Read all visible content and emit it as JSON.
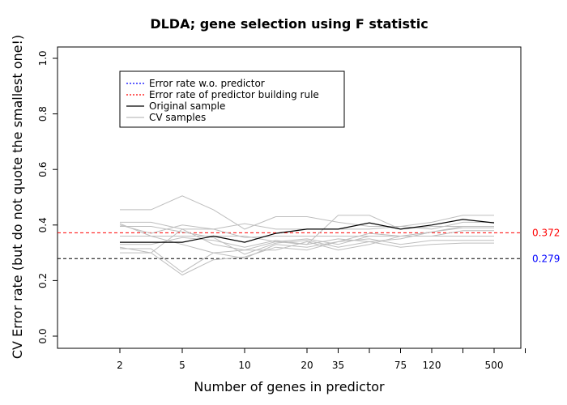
{
  "chart_data": {
    "type": "line",
    "title": "DLDA; gene selection using F statistic",
    "xlabel": "Number of genes in predictor",
    "ylabel": "CV Error rate (but do not quote the smallest one!)",
    "x_ticks": [
      "2",
      "5",
      "10",
      "20",
      "35",
      "75",
      "120",
      "500"
    ],
    "y_ticks": [
      "0.0",
      "0.2",
      "0.4",
      "0.6",
      "0.8",
      "1.0"
    ],
    "ylim": [
      0,
      1
    ],
    "n_points": 13,
    "labeled_tick_index": [
      0,
      2,
      4,
      6,
      7,
      9,
      10,
      12
    ],
    "minor_tick_index": [
      8,
      11,
      13
    ],
    "grid": false,
    "legend": {
      "placement": "top-left",
      "entries": [
        {
          "label": "Error rate w.o. predictor",
          "color": "#0000ff",
          "style": "dotted"
        },
        {
          "label": "Error rate of predictor building rule",
          "color": "#ff0000",
          "style": "dotted"
        },
        {
          "label": "Original sample",
          "color": "#000000",
          "style": "solid"
        },
        {
          "label": "CV samples",
          "color": "#bebebe",
          "style": "solid"
        }
      ]
    },
    "reference_lines": [
      {
        "y": 0.372,
        "label": "0.372",
        "line_color": "#ff0000",
        "text_color": "#ff0000"
      },
      {
        "y": 0.279,
        "label": "0.279",
        "line_color": "#000000",
        "text_color": "#0000ff"
      }
    ],
    "original": [
      0.338,
      0.338,
      0.338,
      0.36,
      0.338,
      0.37,
      0.385,
      0.385,
      0.408,
      0.385,
      0.4,
      0.42,
      0.408
    ],
    "cv_color": "#bebebe",
    "cv_samples": [
      [
        0.455,
        0.455,
        0.505,
        0.455,
        0.385,
        0.43,
        0.43,
        0.41,
        0.395,
        0.395,
        0.41,
        0.435,
        0.435
      ],
      [
        0.41,
        0.41,
        0.385,
        0.385,
        0.405,
        0.385,
        0.385,
        0.385,
        0.385,
        0.395,
        0.385,
        0.41,
        0.41
      ],
      [
        0.405,
        0.36,
        0.36,
        0.36,
        0.36,
        0.34,
        0.33,
        0.435,
        0.435,
        0.385,
        0.395,
        0.395,
        0.395
      ],
      [
        0.315,
        0.315,
        0.23,
        0.3,
        0.31,
        0.34,
        0.35,
        0.33,
        0.36,
        0.36,
        0.375,
        0.395,
        0.395
      ],
      [
        0.32,
        0.3,
        0.22,
        0.275,
        0.285,
        0.32,
        0.31,
        0.34,
        0.35,
        0.33,
        0.345,
        0.345,
        0.345
      ],
      [
        0.3,
        0.3,
        0.385,
        0.33,
        0.31,
        0.31,
        0.34,
        0.31,
        0.33,
        0.36,
        0.36,
        0.36,
        0.36
      ],
      [
        0.4,
        0.37,
        0.4,
        0.385,
        0.355,
        0.36,
        0.36,
        0.36,
        0.36,
        0.36,
        0.36,
        0.38,
        0.38
      ],
      [
        0.33,
        0.33,
        0.355,
        0.345,
        0.32,
        0.345,
        0.33,
        0.35,
        0.34,
        0.32,
        0.33,
        0.335,
        0.335
      ],
      [
        0.395,
        0.395,
        0.375,
        0.355,
        0.295,
        0.335,
        0.345,
        0.32,
        0.34,
        0.35,
        0.375,
        0.39,
        0.39
      ],
      [
        0.36,
        0.36,
        0.33,
        0.3,
        0.28,
        0.33,
        0.32,
        0.34,
        0.37,
        0.36,
        0.36,
        0.36,
        0.36
      ]
    ]
  }
}
